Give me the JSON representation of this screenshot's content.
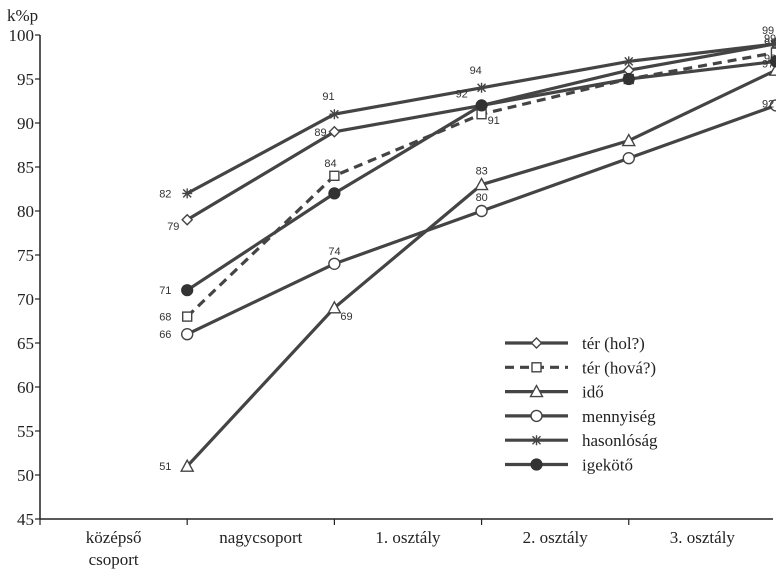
{
  "chart_data": {
    "type": "line",
    "ylabel": "k%p",
    "ylim": [
      45,
      100
    ],
    "yticks": [
      45,
      50,
      55,
      60,
      65,
      70,
      75,
      80,
      85,
      90,
      95,
      100
    ],
    "categories": [
      "középső csoport",
      "nagycsoport",
      "1. osztály",
      "2. osztály",
      "3. osztály"
    ],
    "category_lines": [
      [
        "középső",
        "csoport"
      ],
      [
        "nagycsoport"
      ],
      [
        "1. osztály"
      ],
      [
        "2. osztály"
      ],
      [
        "3. osztály"
      ]
    ],
    "grid": false,
    "legend_position": "bottom-right",
    "series": [
      {
        "name": "tér (hol?)",
        "marker": "diamond",
        "dashed": false,
        "x": [
          1,
          2,
          3,
          4,
          5
        ],
        "values": [
          79,
          89,
          92,
          96,
          99
        ],
        "labels": [
          "79",
          "89",
          "",
          "",
          "99"
        ]
      },
      {
        "name": "tér (hová?)",
        "marker": "square",
        "dashed": true,
        "x": [
          1,
          2,
          3,
          4,
          5
        ],
        "values": [
          68,
          84,
          91,
          95,
          98
        ],
        "labels": [
          "68",
          "84",
          "91",
          "",
          "98"
        ]
      },
      {
        "name": "idő",
        "marker": "triangle",
        "dashed": false,
        "x": [
          1,
          2,
          3,
          4,
          5
        ],
        "values": [
          51,
          69,
          83,
          88,
          96
        ],
        "labels": [
          "51",
          "69",
          "83",
          "",
          "96"
        ]
      },
      {
        "name": "mennyiség",
        "marker": "circle-open",
        "dashed": false,
        "x": [
          1,
          2,
          3,
          4,
          5
        ],
        "values": [
          66,
          74,
          80,
          86,
          92
        ],
        "labels": [
          "66",
          "74",
          "80",
          "",
          "92"
        ]
      },
      {
        "name": "hasonlóság",
        "marker": "star",
        "dashed": false,
        "x": [
          1,
          2,
          3,
          4,
          5
        ],
        "values": [
          82,
          91,
          94,
          97,
          99
        ],
        "labels": [
          "82",
          "91",
          "94",
          "",
          "99"
        ]
      },
      {
        "name": "igekötő",
        "marker": "circle-filled",
        "dashed": false,
        "x": [
          1,
          2,
          3,
          4,
          5
        ],
        "values": [
          71,
          82,
          92,
          95,
          97
        ],
        "labels": [
          "71",
          "",
          "92",
          "",
          "97"
        ]
      }
    ]
  }
}
